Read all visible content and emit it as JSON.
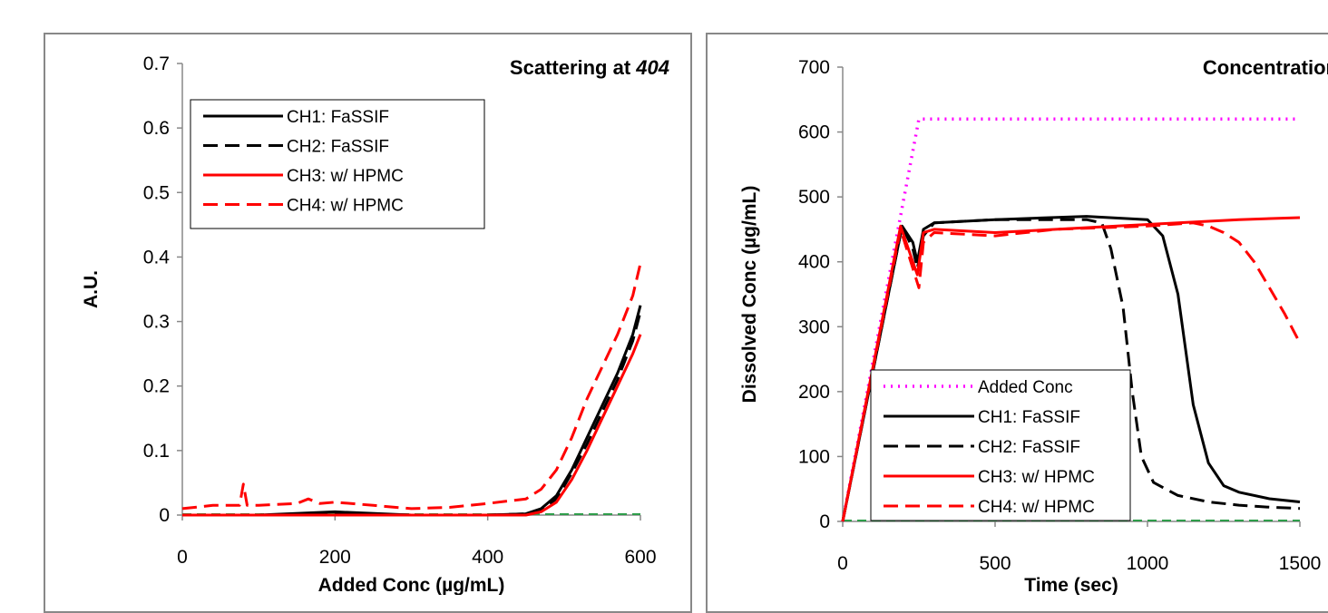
{
  "chart_data": [
    {
      "type": "line",
      "title": "Scattering at",
      "title_italic": "404",
      "xlabel": "Added Conc (µg/mL)",
      "ylabel": "A.U.",
      "xlim": [
        0,
        600
      ],
      "ylim": [
        0,
        0.7
      ],
      "x_ticks": [
        "0",
        "200",
        "400",
        "600"
      ],
      "y_ticks": [
        "0",
        "0.1",
        "0.2",
        "0.3",
        "0.4",
        "0.5",
        "0.6",
        "0.7"
      ],
      "grid": false,
      "legend_position": "top-left",
      "series": [
        {
          "name": "CH1: FaSSIF",
          "color": "#000000",
          "dash": "solid",
          "x": [
            0,
            100,
            200,
            300,
            400,
            450,
            470,
            490,
            510,
            530,
            550,
            570,
            590,
            600
          ],
          "y": [
            0,
            0,
            0.005,
            0,
            0,
            0.002,
            0.01,
            0.03,
            0.07,
            0.12,
            0.17,
            0.22,
            0.28,
            0.325
          ]
        },
        {
          "name": "CH2: FaSSIF",
          "color": "#000000",
          "dash": "dash",
          "x": [
            0,
            100,
            200,
            300,
            400,
            450,
            470,
            490,
            510,
            530,
            550,
            570,
            590,
            600
          ],
          "y": [
            0,
            0,
            0.003,
            0,
            0,
            0.002,
            0.008,
            0.025,
            0.065,
            0.11,
            0.16,
            0.21,
            0.27,
            0.315
          ]
        },
        {
          "name": "CH3: w/ HPMC",
          "color": "#ff0000",
          "dash": "solid",
          "x": [
            0,
            100,
            200,
            300,
            400,
            450,
            470,
            490,
            510,
            530,
            550,
            570,
            590,
            600
          ],
          "y": [
            0,
            0,
            0,
            0,
            0,
            0,
            0.005,
            0.02,
            0.055,
            0.1,
            0.15,
            0.2,
            0.25,
            0.28
          ]
        },
        {
          "name": "CH4: w/ HPMC",
          "color": "#ff0000",
          "dash": "dash",
          "x": [
            0,
            40,
            75,
            80,
            85,
            100,
            150,
            165,
            180,
            200,
            250,
            300,
            350,
            400,
            450,
            470,
            490,
            510,
            530,
            550,
            570,
            590,
            600
          ],
          "y": [
            0.01,
            0.015,
            0.015,
            0.048,
            0.015,
            0.015,
            0.018,
            0.025,
            0.018,
            0.02,
            0.015,
            0.01,
            0.012,
            0.018,
            0.025,
            0.04,
            0.07,
            0.12,
            0.18,
            0.23,
            0.28,
            0.34,
            0.39
          ]
        }
      ]
    },
    {
      "type": "line",
      "title": "Concentration",
      "xlabel": "Time (sec)",
      "ylabel": "Dissolved Conc (µg/mL)",
      "xlim": [
        0,
        1500
      ],
      "ylim": [
        0,
        700
      ],
      "x_ticks": [
        "0",
        "500",
        "1000",
        "1500"
      ],
      "y_ticks": [
        "0",
        "100",
        "200",
        "300",
        "400",
        "500",
        "600",
        "700"
      ],
      "grid": false,
      "legend_position": "bottom-left",
      "series": [
        {
          "name": "Added Conc",
          "color": "#ff00ff",
          "dash": "dot",
          "x": [
            0,
            250,
            1500
          ],
          "y": [
            0,
            620,
            620
          ]
        },
        {
          "name": "CH1: FaSSIF",
          "color": "#000000",
          "dash": "solid",
          "x": [
            0,
            195,
            230,
            245,
            265,
            300,
            500,
            800,
            1000,
            1050,
            1100,
            1150,
            1200,
            1250,
            1300,
            1400,
            1500
          ],
          "y": [
            0,
            455,
            430,
            400,
            450,
            460,
            465,
            470,
            465,
            440,
            350,
            180,
            90,
            55,
            45,
            35,
            30
          ]
        },
        {
          "name": "CH2: FaSSIF",
          "color": "#000000",
          "dash": "dash",
          "x": [
            0,
            195,
            230,
            245,
            265,
            300,
            500,
            800,
            850,
            880,
            920,
            950,
            980,
            1020,
            1100,
            1200,
            1300,
            1400,
            1500
          ],
          "y": [
            0,
            455,
            420,
            390,
            440,
            460,
            465,
            465,
            460,
            420,
            330,
            200,
            100,
            60,
            40,
            30,
            25,
            22,
            20
          ]
        },
        {
          "name": "CH3: w/ HPMC",
          "color": "#ff0000",
          "dash": "solid",
          "x": [
            0,
            190,
            230,
            245,
            265,
            300,
            500,
            700,
            900,
            1100,
            1300,
            1500
          ],
          "y": [
            0,
            455,
            400,
            380,
            445,
            450,
            445,
            450,
            455,
            460,
            465,
            468
          ]
        },
        {
          "name": "CH4: w/ HPMC",
          "color": "#ff0000",
          "dash": "dash",
          "x": [
            0,
            190,
            230,
            250,
            265,
            300,
            500,
            700,
            1000,
            1150,
            1200,
            1250,
            1300,
            1350,
            1400,
            1450,
            1500
          ],
          "y": [
            0,
            450,
            390,
            360,
            430,
            445,
            440,
            450,
            455,
            460,
            455,
            445,
            430,
            400,
            360,
            320,
            275
          ]
        }
      ]
    }
  ]
}
